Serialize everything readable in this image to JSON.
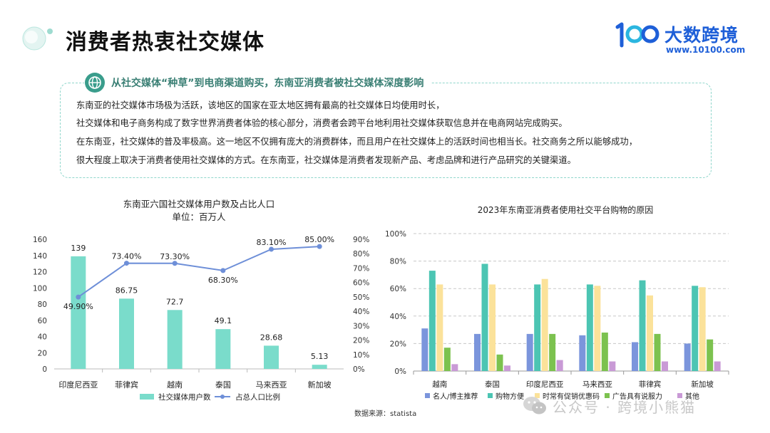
{
  "page": {
    "title": "消费者热衷社交媒体",
    "brand": {
      "name": "大数跨境",
      "url": "www.10100.com",
      "mark_text": "100"
    }
  },
  "summary": {
    "heading": "从社交媒体“种草”到电商渠道购买，东南亚消费者被社交媒体深度影响",
    "lines": [
      "东南亚的社交媒体市场极为活跃，该地区的国家在亚太地区拥有最高的社交媒体日均使用时长，",
      "社交媒体和电子商务构成了数字世界消费者体验的核心部分，消费者会跨平台地利用社交媒体获取信息并在电商网站完成购买。",
      "在东南亚，社交媒体的普及率极高。这一地区不仅拥有庞大的消费群体，而且用户在社交媒体上的活跃时间也相当长。社交商务之所以能够成功，",
      "很大程度上取决于消费者使用社交媒体的方式。在东南亚，社交媒体是消费者发现新产品、考虑品牌和进行产品研究的关键渠道。"
    ]
  },
  "source_note": "数据来源：statista",
  "watermark": "公众号 · 跨境小熊猫",
  "colors": {
    "teal": "#7adccb",
    "line_blue": "#6e8fd8",
    "accent_text": "#3a7f74",
    "brand": "#1e5fd8"
  },
  "chart_data": [
    {
      "type": "bar",
      "title": "东南亚六国社交媒体用户数及占比人口",
      "subtitle": "单位：百万人",
      "categories": [
        "印度尼西亚",
        "菲律宾",
        "越南",
        "泰国",
        "马来西亚",
        "新加坡"
      ],
      "series": [
        {
          "name": "社交媒体用户数",
          "type": "bar",
          "axis": "left",
          "values": [
            139,
            86.75,
            72.7,
            49.1,
            28.68,
            5.13
          ],
          "labels": [
            "139",
            "86.75",
            "72.7",
            "49.1",
            "28.68",
            "5.13"
          ],
          "color": "#7adccb"
        },
        {
          "name": "占总人口比例",
          "type": "line",
          "axis": "right",
          "values": [
            49.9,
            73.4,
            73.3,
            68.3,
            83.1,
            85.0
          ],
          "labels": [
            "49.90%",
            "73.40%",
            "73.30%",
            "68.30%",
            "83.10%",
            "85.00%"
          ],
          "color": "#6e8fd8"
        }
      ],
      "ylim": [
        0,
        160
      ],
      "yticks": [
        "0",
        "20",
        "40",
        "60",
        "80",
        "100",
        "120",
        "140",
        "160"
      ],
      "y2lim": [
        0,
        90
      ],
      "y2ticks": [
        "0%",
        "10%",
        "20%",
        "30%",
        "40%",
        "50%",
        "60%",
        "70%",
        "80%",
        "90%"
      ],
      "legend": "bottom",
      "grid": false
    },
    {
      "type": "bar",
      "title": "2023年东南亚消费者使用社交平台购物的原因",
      "categories": [
        "越南",
        "泰国",
        "印度尼西亚",
        "马来西亚",
        "菲律宾",
        "新加坡"
      ],
      "series": [
        {
          "name": "名人/博主推荐",
          "values": [
            31,
            27,
            27,
            26,
            21,
            20
          ],
          "color": "#7b95dc"
        },
        {
          "name": "购物方便",
          "values": [
            73,
            78,
            63,
            63,
            66,
            62
          ],
          "color": "#4cc5b3"
        },
        {
          "name": "时常有促销优惠码",
          "values": [
            63,
            63,
            67,
            62,
            55,
            61
          ],
          "color": "#fbe29a"
        },
        {
          "name": "广告具有说服力",
          "values": [
            17,
            12,
            27,
            28,
            27,
            23
          ],
          "color": "#7cc24f"
        },
        {
          "name": "其他",
          "values": [
            5,
            4,
            8,
            7,
            7,
            7
          ],
          "color": "#c99ad6"
        }
      ],
      "ylim": [
        0,
        100
      ],
      "yticks": [
        "0%",
        "20%",
        "40%",
        "60%",
        "80%",
        "100%"
      ],
      "legend": "bottom",
      "grid": true
    }
  ]
}
